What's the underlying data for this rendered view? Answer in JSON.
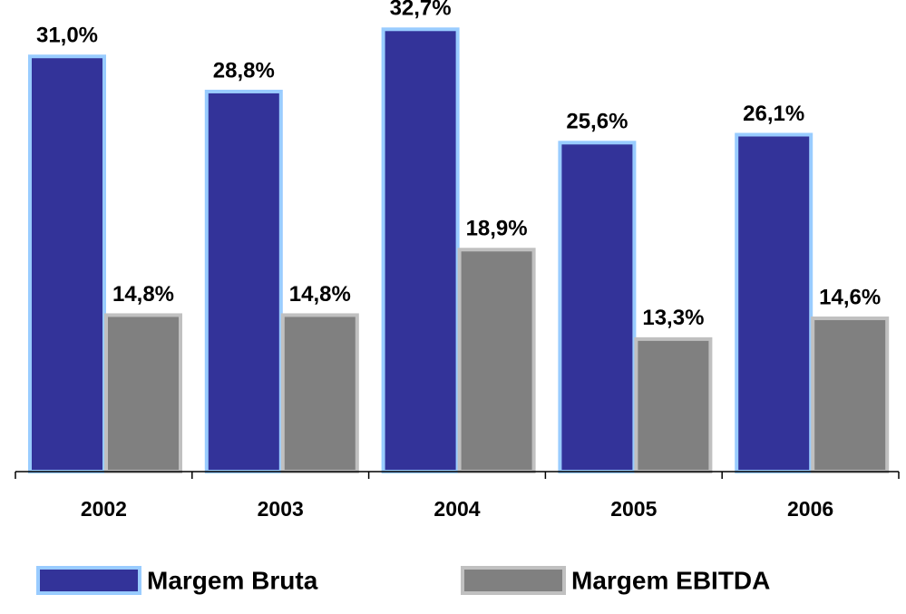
{
  "chart_data": {
    "type": "bar",
    "categories": [
      "2002",
      "2003",
      "2004",
      "2005",
      "2006"
    ],
    "series": [
      {
        "name": "Margem Bruta",
        "color": "#333399",
        "border": "#99ccff",
        "values": [
          31.0,
          28.8,
          32.7,
          25.6,
          26.1
        ],
        "value_labels": [
          "31,0%",
          "28,8%",
          "32,7%",
          "25,6%",
          "26,1%"
        ]
      },
      {
        "name": "Margem EBITDA",
        "color": "#808080",
        "border": "#c0c0c0",
        "values": [
          14.8,
          14.8,
          18.9,
          13.3,
          14.6
        ],
        "value_labels": [
          "14,8%",
          "14,8%",
          "18,9%",
          "13,3%",
          "14,6%"
        ]
      }
    ],
    "ylim": [
      5,
      33
    ]
  }
}
